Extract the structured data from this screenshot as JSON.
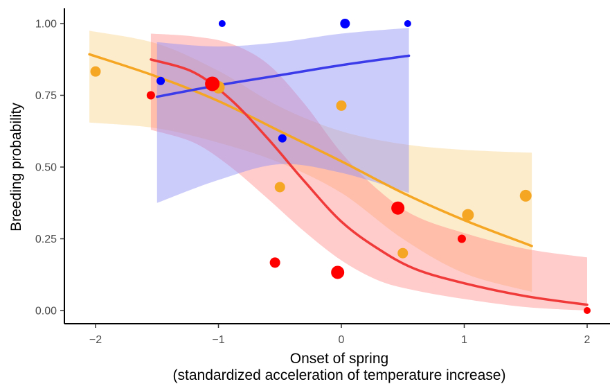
{
  "chart_data": {
    "type": "scatter",
    "xlabel_line1": "Onset of spring",
    "xlabel_line2": "(standardized acceleration of temperature increase)",
    "ylabel": "Breeding probability",
    "xlim": [
      -2.2,
      2.2
    ],
    "ylim": [
      -0.05,
      1.05
    ],
    "x_ticks": [
      {
        "value": -2,
        "label": "−2"
      },
      {
        "value": -1,
        "label": "−1"
      },
      {
        "value": 0,
        "label": "0"
      },
      {
        "value": 1,
        "label": "1"
      },
      {
        "value": 2,
        "label": "2"
      }
    ],
    "y_ticks": [
      {
        "value": 0,
        "label": "0.00"
      },
      {
        "value": 0.25,
        "label": "0.25"
      },
      {
        "value": 0.5,
        "label": "0.50"
      },
      {
        "value": 0.75,
        "label": "0.75"
      },
      {
        "value": 1,
        "label": "1.00"
      }
    ],
    "grid": false,
    "series": [
      {
        "color": "#f5a623",
        "line_color": "#f5a623",
        "band_color": "#fbd99a",
        "band_opacity": 0.5,
        "points": [
          {
            "x": -2.0,
            "y": 0.833,
            "size": 7.5
          },
          {
            "x": -1.55,
            "y": 0.75,
            "size": 6
          },
          {
            "x": -1.0,
            "y": 0.778,
            "size": 9
          },
          {
            "x": -0.5,
            "y": 0.43,
            "size": 7.5
          },
          {
            "x": 0.0,
            "y": 0.714,
            "size": 7.5
          },
          {
            "x": 0.5,
            "y": 0.2,
            "size": 7.5
          },
          {
            "x": 1.03,
            "y": 0.333,
            "size": 8.5
          },
          {
            "x": 1.5,
            "y": 0.4,
            "size": 8.5
          }
        ],
        "fit": [
          [
            -2.05,
            0.893
          ],
          [
            -1.5,
            0.815
          ],
          [
            -1.0,
            0.73
          ],
          [
            -0.5,
            0.625
          ],
          [
            0.0,
            0.52
          ],
          [
            0.5,
            0.41
          ],
          [
            1.0,
            0.315
          ],
          [
            1.55,
            0.225
          ]
        ],
        "ci_upper": [
          [
            -2.05,
            0.975
          ],
          [
            -1.5,
            0.93
          ],
          [
            -1.0,
            0.835
          ],
          [
            -0.5,
            0.71
          ],
          [
            0.0,
            0.625
          ],
          [
            0.5,
            0.58
          ],
          [
            1.0,
            0.56
          ],
          [
            1.55,
            0.55
          ]
        ],
        "ci_lower": [
          [
            -2.05,
            0.655
          ],
          [
            -1.5,
            0.635
          ],
          [
            -1.0,
            0.585
          ],
          [
            -0.5,
            0.515
          ],
          [
            0.0,
            0.41
          ],
          [
            0.5,
            0.25
          ],
          [
            1.0,
            0.13
          ],
          [
            1.55,
            0.065
          ]
        ]
      },
      {
        "color": "#ff0000",
        "line_color": "#f03a3a",
        "band_color": "#ff6b6b",
        "band_opacity": 0.35,
        "points": [
          {
            "x": -1.55,
            "y": 0.75,
            "size": 6
          },
          {
            "x": -1.05,
            "y": 0.79,
            "size": 10.5
          },
          {
            "x": -0.54,
            "y": 0.167,
            "size": 7.5
          },
          {
            "x": -0.03,
            "y": 0.133,
            "size": 9.5
          },
          {
            "x": 0.46,
            "y": 0.357,
            "size": 9.5
          },
          {
            "x": 0.98,
            "y": 0.25,
            "size": 6
          },
          {
            "x": 2.0,
            "y": 0.0,
            "size": 5
          }
        ],
        "fit": [
          [
            -1.55,
            0.875
          ],
          [
            -1.2,
            0.83
          ],
          [
            -0.9,
            0.735
          ],
          [
            -0.6,
            0.6
          ],
          [
            -0.3,
            0.45
          ],
          [
            0.0,
            0.31
          ],
          [
            0.3,
            0.215
          ],
          [
            0.6,
            0.145
          ],
          [
            1.0,
            0.095
          ],
          [
            1.5,
            0.05
          ],
          [
            2.0,
            0.02
          ]
        ],
        "ci_upper": [
          [
            -1.55,
            0.965
          ],
          [
            -1.2,
            0.955
          ],
          [
            -0.9,
            0.93
          ],
          [
            -0.6,
            0.86
          ],
          [
            -0.3,
            0.72
          ],
          [
            0.0,
            0.55
          ],
          [
            0.3,
            0.42
          ],
          [
            0.6,
            0.33
          ],
          [
            1.0,
            0.27
          ],
          [
            1.5,
            0.215
          ],
          [
            2.0,
            0.185
          ]
        ],
        "ci_lower": [
          [
            -1.55,
            0.63
          ],
          [
            -1.2,
            0.585
          ],
          [
            -0.9,
            0.5
          ],
          [
            -0.6,
            0.39
          ],
          [
            -0.3,
            0.275
          ],
          [
            0.0,
            0.175
          ],
          [
            0.3,
            0.105
          ],
          [
            0.6,
            0.07
          ],
          [
            1.0,
            0.04
          ],
          [
            1.5,
            0.012
          ],
          [
            2.0,
            0.0
          ]
        ]
      },
      {
        "color": "#0000ff",
        "line_color": "#3b3bea",
        "band_color": "#8f8ff6",
        "band_opacity": 0.45,
        "points": [
          {
            "x": -1.47,
            "y": 0.8,
            "size": 6
          },
          {
            "x": -0.97,
            "y": 1.0,
            "size": 5
          },
          {
            "x": -0.48,
            "y": 0.6,
            "size": 6
          },
          {
            "x": 0.03,
            "y": 1.0,
            "size": 7
          },
          {
            "x": 0.54,
            "y": 1.0,
            "size": 5
          }
        ],
        "fit": [
          [
            -1.5,
            0.745
          ],
          [
            -1.0,
            0.785
          ],
          [
            -0.5,
            0.82
          ],
          [
            0.0,
            0.855
          ],
          [
            0.55,
            0.888
          ]
        ],
        "ci_upper": [
          [
            -1.5,
            0.935
          ],
          [
            -1.0,
            0.92
          ],
          [
            -0.5,
            0.935
          ],
          [
            0.0,
            0.965
          ],
          [
            0.55,
            0.985
          ]
        ],
        "ci_lower": [
          [
            -1.5,
            0.375
          ],
          [
            -1.0,
            0.455
          ],
          [
            -0.5,
            0.51
          ],
          [
            0.0,
            0.48
          ],
          [
            0.55,
            0.41
          ]
        ]
      }
    ]
  }
}
